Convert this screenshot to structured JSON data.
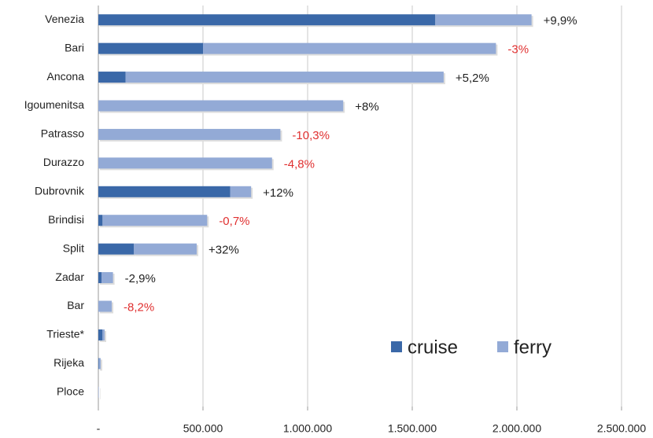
{
  "chart_data": {
    "type": "bar",
    "orientation": "horizontal",
    "stacked": true,
    "categories": [
      "Venezia",
      "Bari",
      "Ancona",
      "Igoumenitsa",
      "Patrasso",
      "Durazzo",
      "Dubrovnik",
      "Brindisi",
      "Split",
      "Zadar",
      "Bar",
      "Trieste*",
      "Rijeka",
      "Ploce"
    ],
    "series": [
      {
        "name": "cruise",
        "color": "#3a68a8",
        "values": [
          1610000,
          500000,
          130000,
          0,
          0,
          0,
          630000,
          20000,
          170000,
          15000,
          0,
          20000,
          3000,
          0
        ]
      },
      {
        "name": "ferry",
        "color": "#93aad6",
        "values": [
          460000,
          1400000,
          1520000,
          1170000,
          870000,
          830000,
          100000,
          500000,
          300000,
          55000,
          64000,
          10000,
          8000,
          2000
        ]
      }
    ],
    "change_labels": [
      "+9,9%",
      "-3%",
      "+5,2%",
      "+8%",
      "-10,3%",
      "-4,8%",
      "+12%",
      "-0,7%",
      "+32%",
      "-2,9%",
      "-8,2%"
    ],
    "change_label_colors": [
      "#222222",
      "#e03030",
      "#222222",
      "#222222",
      "#e03030",
      "#e03030",
      "#222222",
      "#e03030",
      "#222222",
      "#222222",
      "#e03030"
    ],
    "xlim": [
      0,
      2500000
    ],
    "xticks": [
      {
        "value": 0,
        "label": "-"
      },
      {
        "value": 500000,
        "label": "500.000"
      },
      {
        "value": 1000000,
        "label": "1.000.000"
      },
      {
        "value": 1500000,
        "label": "1.500.000"
      },
      {
        "value": 2000000,
        "label": "2.000.000"
      },
      {
        "value": 2500000,
        "label": "2.500.000"
      }
    ],
    "grid": true,
    "legend": "lower right"
  }
}
